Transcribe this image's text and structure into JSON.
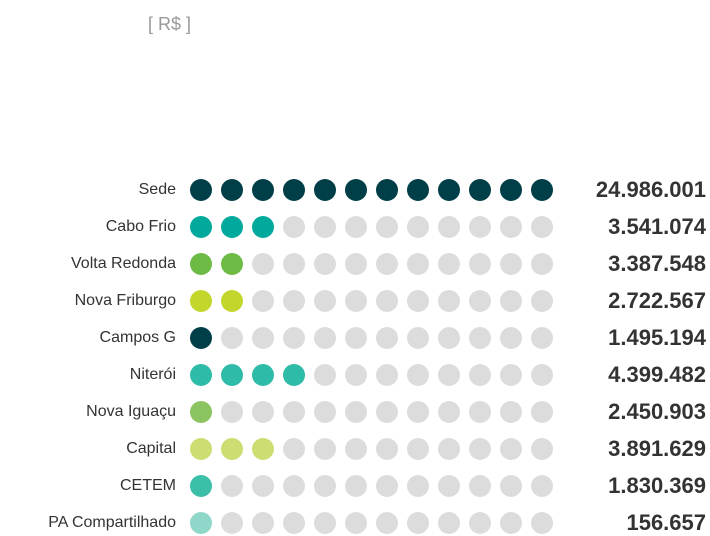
{
  "chart_data": {
    "type": "dot",
    "subtitle": "[ R$ ]",
    "categories": [
      "Sede",
      "Cabo Frio",
      "Volta Redonda",
      "Nova Friburgo",
      "Campos G",
      "Niterói",
      "Nova Iguaçu",
      "Capital",
      "CETEM",
      "PA Compartilhado"
    ],
    "values": [
      24986001,
      3541074,
      3387548,
      2722567,
      1495194,
      4399482,
      2450903,
      3891629,
      1830369,
      156657
    ],
    "value_labels": [
      "24.986.001",
      "3.541.074",
      "3.387.548",
      "2.722.567",
      "1.495.194",
      "4.399.482",
      "2.450.903",
      "3.891.629",
      "1.830.369",
      "156.657"
    ],
    "filled": [
      12,
      3,
      2,
      2,
      1,
      4,
      1,
      3,
      1,
      1
    ],
    "dots_per_row": 12,
    "colors": [
      "#003f47",
      "#00a99b",
      "#6dbb45",
      "#c3d62b",
      "#003f47",
      "#2ebba8",
      "#8cc462",
      "#cddd72",
      "#3cbfa9",
      "#8fd7c9"
    ],
    "empty_color": "#dcdcdc"
  }
}
